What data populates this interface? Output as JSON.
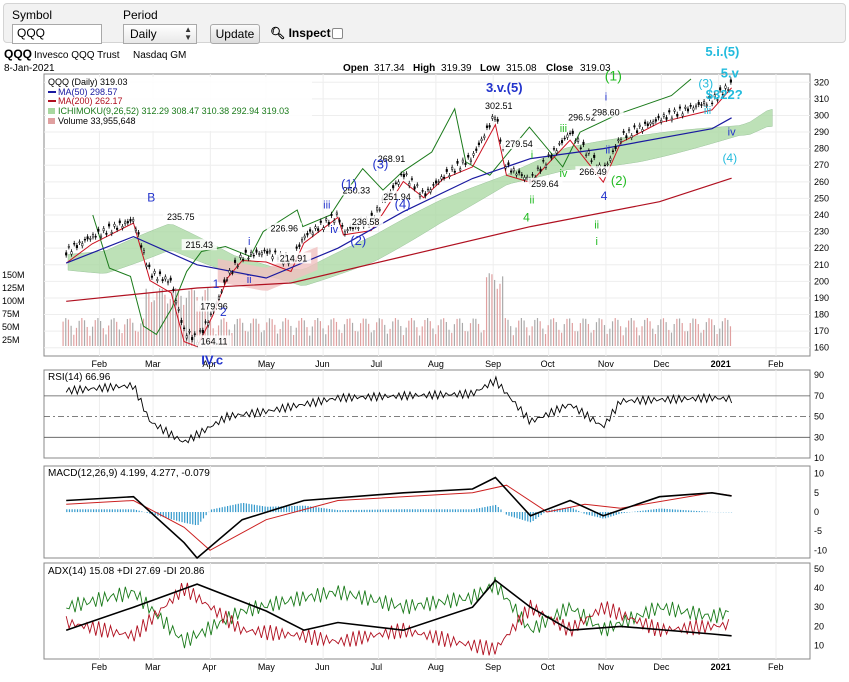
{
  "toolbar": {
    "symbol_label": "Symbol",
    "symbol_value": "QQQ",
    "period_label": "Period",
    "period_value": "Daily",
    "update_label": "Update",
    "inspect_label": "Inspect"
  },
  "header": {
    "ticker": "QQQ",
    "name": "Invesco QQQ Trust",
    "exchange": "Nasdaq GM",
    "date": "8-Jan-2021",
    "open_label": "Open",
    "open": "317.34",
    "high_label": "High",
    "high": "319.39",
    "low_label": "Low",
    "low": "315.08",
    "close_label": "Close",
    "close": "319.03"
  },
  "legend": {
    "price": "QQQ (Daily) 319.03",
    "ma50": "MA(50) 298.57",
    "ma200": "MA(200) 262.17",
    "ichimoku": "ICHIMOKU(9,26,52) 312.29 308.47 310.38 292.94 319.03",
    "volume": "Volume 33,955,648"
  },
  "colors": {
    "price": "#000000",
    "ma50": "#1a1aa0",
    "ma200": "#b01020",
    "kijun": "#cc1020",
    "chikou": "#1a7a1a",
    "cloud_bull": "#a8d8a0",
    "cloud_bear": "#f0c0c0",
    "wave_blue": "#2233cc",
    "wave_green": "#22bb22",
    "wave_cyan": "#22bbdd",
    "macd_hist": "#3399cc",
    "adx_plus": "#1a7a1a",
    "adx_minus": "#b01020"
  },
  "chart_data": [
    {
      "type": "candlestick",
      "title": "QQQ Invesco QQQ Trust Nasdaq GM",
      "x_tick_labels": [
        "Feb",
        "Mar",
        "Apr",
        "May",
        "Jun",
        "Jul",
        "Aug",
        "Sep",
        "Oct",
        "Nov",
        "Dec",
        "2021",
        "Feb"
      ],
      "y_tick_labels": [
        "160",
        "170",
        "180",
        "190",
        "200",
        "210",
        "220",
        "230",
        "240",
        "250",
        "260",
        "270",
        "280",
        "290",
        "300",
        "310",
        "320"
      ],
      "volume_tick_labels": [
        "25M",
        "50M",
        "75M",
        "100M",
        "125M",
        "150M"
      ],
      "ylim": [
        160,
        320
      ],
      "close_points": [
        [
          "Jan 13",
          218
        ],
        [
          "Jan 27",
          227
        ],
        [
          "Feb 19",
          237
        ],
        [
          "Feb 28",
          205
        ],
        [
          "Mar 9",
          200
        ],
        [
          "Mar 16",
          170
        ],
        [
          "Mar 23",
          165
        ],
        [
          "Apr 1",
          181
        ],
        [
          "Apr 9",
          203
        ],
        [
          "Apr 17",
          215
        ],
        [
          "Apr 30",
          218
        ],
        [
          "May 13",
          212
        ],
        [
          "May 20",
          227
        ],
        [
          "Jun 8",
          240
        ],
        [
          "Jun 11",
          230
        ],
        [
          "Jun 26",
          237
        ],
        [
          "Jul 2",
          248
        ],
        [
          "Jul 13",
          265
        ],
        [
          "Jul 24",
          252
        ],
        [
          "Aug 4",
          263
        ],
        [
          "Aug 20",
          275
        ],
        [
          "Sep 2",
          301
        ],
        [
          "Sep 8",
          269
        ],
        [
          "Sep 21",
          261
        ],
        [
          "Oct 12",
          290
        ],
        [
          "Oct 30",
          266
        ],
        [
          "Nov 9",
          287
        ],
        [
          "Nov 30",
          298
        ],
        [
          "Dec 28",
          309
        ],
        [
          "Jan 8",
          319
        ]
      ],
      "price_labels": [
        "235.75",
        "215.43",
        "179.96",
        "164.11",
        "226.96",
        "214.91",
        "250.33",
        "236.58",
        "268.91",
        "251.94",
        "302.51",
        "279.54",
        "259.64",
        "296.92",
        "266.49",
        "298.60"
      ],
      "wave_labels": [
        "B",
        "IV.c",
        "1",
        "2",
        "i",
        "ii",
        "iii",
        "iv",
        "(1)",
        "(2)",
        "(3)",
        "(4)",
        "3.v.(5)",
        "4",
        "i",
        "ii",
        "iii",
        "iv",
        "i",
        "ii",
        "4",
        "(1)",
        "(2)",
        "i",
        "ii",
        "(3)",
        "iii",
        "iv",
        "(4)",
        "5.i.(5)",
        "5.v",
        "$322?"
      ],
      "ma50_points": [
        [
          "Jan 13",
          211
        ],
        [
          "Feb 19",
          227
        ],
        [
          "Mar 23",
          210
        ],
        [
          "Apr 30",
          202
        ],
        [
          "Jun 8",
          220
        ],
        [
          "Jul 13",
          242
        ],
        [
          "Aug 20",
          262
        ],
        [
          "Sep 21",
          274
        ],
        [
          "Oct 30",
          280
        ],
        [
          "Dec 28",
          292
        ],
        [
          "Jan 8",
          298.57
        ]
      ],
      "ma200_points": [
        [
          "Jan 13",
          188
        ],
        [
          "Mar 23",
          196
        ],
        [
          "May 13",
          199
        ],
        [
          "Jul 13",
          215
        ],
        [
          "Sep 21",
          233
        ],
        [
          "Nov 30",
          248
        ],
        [
          "Jan 8",
          262.17
        ]
      ]
    },
    {
      "type": "line",
      "title": "RSI(14) 66.96",
      "series": [
        {
          "name": "RSI(14)",
          "points": [
            [
              "Jan 13",
              75
            ],
            [
              "Feb 19",
              80
            ],
            [
              "Feb 28",
              45
            ],
            [
              "Mar 16",
              25
            ],
            [
              "Apr 9",
              50
            ],
            [
              "Apr 30",
              55
            ],
            [
              "Jun 8",
              68
            ],
            [
              "Jul 13",
              70
            ],
            [
              "Aug 20",
              72
            ],
            [
              "Sep 2",
              85
            ],
            [
              "Sep 21",
              45
            ],
            [
              "Oct 12",
              62
            ],
            [
              "Oct 30",
              40
            ],
            [
              "Nov 9",
              65
            ],
            [
              "Dec 28",
              68
            ],
            [
              "Jan 8",
              66.96
            ]
          ]
        }
      ],
      "ylim": [
        10,
        90
      ],
      "y_tick_labels": [
        "10",
        "30",
        "50",
        "70",
        "90"
      ],
      "reference_lines": [
        30,
        50,
        70
      ]
    },
    {
      "type": "line",
      "title": "MACD(12,26,9) 4.199, 4.277, -0.079",
      "series": [
        {
          "name": "MACD",
          "points": [
            [
              "Jan 13",
              3
            ],
            [
              "Feb 19",
              4
            ],
            [
              "Mar 16",
              -8
            ],
            [
              "Mar 23",
              -12
            ],
            [
              "Apr 17",
              -2
            ],
            [
              "May 20",
              3
            ],
            [
              "Jul 13",
              5
            ],
            [
              "Aug 20",
              6
            ],
            [
              "Sep 2",
              9
            ],
            [
              "Sep 21",
              -1
            ],
            [
              "Oct 12",
              3
            ],
            [
              "Oct 30",
              -1
            ],
            [
              "Nov 30",
              4
            ],
            [
              "Dec 28",
              5
            ],
            [
              "Jan 8",
              4.199
            ]
          ]
        },
        {
          "name": "Signal",
          "points": [
            [
              "Jan 13",
              2
            ],
            [
              "Feb 19",
              3
            ],
            [
              "Mar 16",
              -4
            ],
            [
              "Mar 30",
              -10
            ],
            [
              "Apr 30",
              -2
            ],
            [
              "Jun 8",
              3
            ],
            [
              "Aug 20",
              5
            ],
            [
              "Sep 8",
              7
            ],
            [
              "Sep 30",
              0
            ],
            [
              "Oct 20",
              2
            ],
            [
              "Nov 9",
              1
            ],
            [
              "Dec 28",
              5
            ],
            [
              "Jan 8",
              4.277
            ]
          ]
        }
      ],
      "histogram_last": -0.079,
      "ylim": [
        -12,
        10
      ],
      "y_tick_labels": [
        "-10",
        "-5",
        "0",
        "5",
        "10"
      ]
    },
    {
      "type": "line",
      "title": "ADX(14) 15.08 +DI 27.69 -DI 20.86",
      "series": [
        {
          "name": "ADX(14)",
          "points": [
            [
              "Jan 13",
              18
            ],
            [
              "Feb 19",
              30
            ],
            [
              "Mar 23",
              42
            ],
            [
              "Apr 30",
              28
            ],
            [
              "May 20",
              18
            ],
            [
              "Jun 8",
              22
            ],
            [
              "Jul 13",
              18
            ],
            [
              "Aug 20",
              30
            ],
            [
              "Sep 2",
              44
            ],
            [
              "Sep 21",
              30
            ],
            [
              "Oct 12",
              18
            ],
            [
              "Nov 9",
              20
            ],
            [
              "Dec 28",
              16
            ],
            [
              "Jan 8",
              15.08
            ]
          ]
        },
        {
          "name": "+DI",
          "points": [
            [
              "Jan 13",
              30
            ],
            [
              "Feb 19",
              38
            ],
            [
              "Mar 16",
              12
            ],
            [
              "Apr 17",
              28
            ],
            [
              "May 20",
              35
            ],
            [
              "Jun 8",
              38
            ],
            [
              "Jul 13",
              30
            ],
            [
              "Aug 20",
              35
            ],
            [
              "Sep 2",
              42
            ],
            [
              "Sep 21",
              18
            ],
            [
              "Oct 12",
              30
            ],
            [
              "Oct 30",
              18
            ],
            [
              "Nov 30",
              30
            ],
            [
              "Dec 28",
              25
            ],
            [
              "Jan 8",
              27.69
            ]
          ]
        },
        {
          "name": "-DI",
          "points": [
            [
              "Jan 13",
              22
            ],
            [
              "Feb 19",
              15
            ],
            [
              "Mar 16",
              40
            ],
            [
              "Apr 17",
              18
            ],
            [
              "May 20",
              15
            ],
            [
              "Jun 8",
              12
            ],
            [
              "Jul 13",
              18
            ],
            [
              "Aug 20",
              10
            ],
            [
              "Sep 2",
              8
            ],
            [
              "Sep 21",
              30
            ],
            [
              "Oct 12",
              18
            ],
            [
              "Oct 30",
              30
            ],
            [
              "Nov 30",
              18
            ],
            [
              "Dec 28",
              20
            ],
            [
              "Jan 8",
              20.86
            ]
          ]
        }
      ],
      "ylim": [
        5,
        50
      ],
      "y_tick_labels": [
        "10",
        "20",
        "30",
        "40",
        "50"
      ]
    }
  ]
}
